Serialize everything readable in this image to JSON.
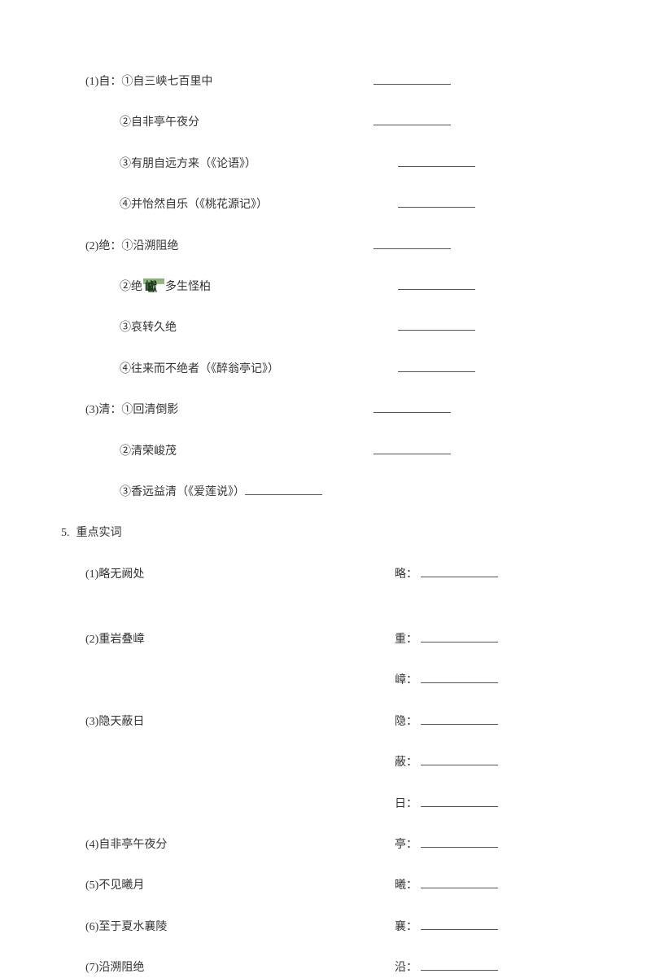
{
  "items": [
    {
      "left": "(1)自：①自三峡七百里中",
      "indent": "indent-1",
      "hasBlank": true,
      "rightLabel": ""
    },
    {
      "left": "②自非亭午夜分",
      "indent": "indent-2",
      "hasBlank": true,
      "rightLabel": ""
    },
    {
      "left": "③有朋自远方来（《论语》）",
      "indent": "indent-2",
      "hasBlank": true,
      "rightLabel": "",
      "blankShift": 30
    },
    {
      "left": "④并怡然自乐（《桃花源记》）",
      "indent": "indent-2",
      "hasBlank": true,
      "rightLabel": "",
      "blankShift": 30
    },
    {
      "left": "(2)绝：①沿溯阻绝",
      "indent": "indent-1",
      "hasBlank": true,
      "rightLabel": ""
    },
    {
      "left": "②绝",
      "indent": "indent-2",
      "special": "glyph",
      "tail": "多生怪柏",
      "hasBlank": true,
      "rightLabel": "",
      "blankShift": 30
    },
    {
      "left": "③哀转久绝",
      "indent": "indent-2",
      "hasBlank": true,
      "rightLabel": "",
      "blankShift": 30
    },
    {
      "left": "④往来而不绝者（《醉翁亭记》）",
      "indent": "indent-2",
      "hasBlank": true,
      "rightLabel": "",
      "blankShift": 30
    },
    {
      "left": "(3)清：①回清倒影",
      "indent": "indent-1",
      "hasBlank": true,
      "rightLabel": ""
    },
    {
      "left": "②清荣峻茂",
      "indent": "indent-2",
      "hasBlank": true,
      "rightLabel": ""
    },
    {
      "left": "③香远益清（《爱莲说》）",
      "indent": "indent-2",
      "inlineBlank": true
    }
  ],
  "section5": {
    "num": "5.",
    "title": "重点实词"
  },
  "vocab": [
    {
      "left": "(1)略无阙处",
      "rights": [
        "略："
      ]
    },
    {
      "spacer": 30
    },
    {
      "left": "(2)重岩叠嶂",
      "rights": [
        "重："
      ]
    },
    {
      "left": "",
      "rights": [
        "嶂："
      ]
    },
    {
      "left": "(3)隐天蔽日",
      "rights": [
        "隐："
      ]
    },
    {
      "left": "",
      "rights": [
        "蔽："
      ]
    },
    {
      "left": "",
      "rights": [
        "日："
      ]
    },
    {
      "left": "(4)自非亭午夜分",
      "rights": [
        "亭："
      ]
    },
    {
      "left": "(5)不见曦月",
      "rights": [
        "曦："
      ]
    },
    {
      "left": "(6)至于夏水襄陵",
      "rights": [
        "襄："
      ]
    },
    {
      "left": "(7)沿溯阻绝",
      "rights": [
        "沿："
      ]
    }
  ],
  "colors": {
    "text": "#333333",
    "line": "#555555",
    "background": "#ffffff"
  }
}
